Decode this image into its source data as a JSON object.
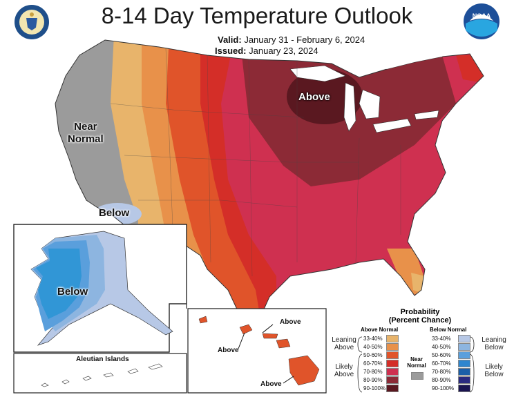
{
  "title": "8-14 Day Temperature Outlook",
  "valid_label": "Valid:",
  "valid_value": "January 31 - February 6, 2024",
  "issued_label": "Issued:",
  "issued_value": "January 23, 2024",
  "logos": {
    "left": "department-of-commerce-seal",
    "right": "noaa-logo",
    "noaa_text": "NOAA"
  },
  "map_labels": {
    "near_normal": "Near Normal",
    "near": "Near",
    "normal": "Normal",
    "below_conus": "Below",
    "above_conus": "Above",
    "below_alaska": "Below",
    "aleutian": "Aleutian Islands",
    "hawaii_above_1": "Above",
    "hawaii_above_2": "Above",
    "hawaii_above_3": "Above"
  },
  "legend": {
    "title_line1": "Probability",
    "title_line2": "(Percent Chance)",
    "above_header": "Above Normal",
    "below_header": "Below Normal",
    "near_normal_line1": "Near",
    "near_normal_line2": "Normal",
    "leaning_above_1": "Leaning",
    "leaning_above_2": "Above",
    "likely_above_1": "Likely",
    "likely_above_2": "Above",
    "leaning_below_1": "Leaning",
    "leaning_below_2": "Below",
    "likely_below_1": "Likely",
    "likely_below_2": "Below",
    "above": [
      {
        "label": "33-40%",
        "color": "#e8b46b"
      },
      {
        "label": "40-50%",
        "color": "#e8914a"
      },
      {
        "label": "50-60%",
        "color": "#e0542a"
      },
      {
        "label": "60-70%",
        "color": "#d42e28"
      },
      {
        "label": "70-80%",
        "color": "#cf3050"
      },
      {
        "label": "80-90%",
        "color": "#8c2a36"
      },
      {
        "label": "90-100%",
        "color": "#5a1820"
      }
    ],
    "below": [
      {
        "label": "33-40%",
        "color": "#b7c8e6"
      },
      {
        "label": "40-50%",
        "color": "#8db5e0"
      },
      {
        "label": "50-60%",
        "color": "#5a9fdc"
      },
      {
        "label": "60-70%",
        "color": "#2e86cf"
      },
      {
        "label": "70-80%",
        "color": "#1b5fa8"
      },
      {
        "label": "80-90%",
        "color": "#2a2a80"
      },
      {
        "label": "90-100%",
        "color": "#1a1450"
      }
    ],
    "near_color": "#9b9b9b"
  }
}
